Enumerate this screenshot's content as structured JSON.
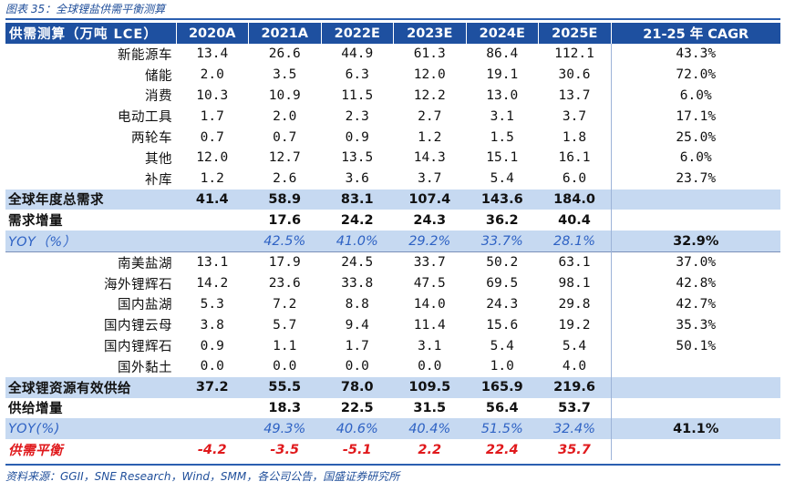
{
  "caption": "图表 35：全球锂盐供需平衡测算",
  "source": "资料来源：GGII，SNE Research，Wind，SMM，各公司公告，国盛证券研究所",
  "header": [
    "供需测算（万吨 LCE）",
    "2020A",
    "2021A",
    "2022E",
    "2023E",
    "2024E",
    "2025E",
    "21-25 年 CAGR"
  ],
  "demand_rows": [
    {
      "label": "新能源车",
      "values": [
        "13.4",
        "26.6",
        "44.9",
        "61.3",
        "86.4",
        "112.1"
      ],
      "cagr": "43.3%"
    },
    {
      "label": "储能",
      "values": [
        "2.0",
        "3.5",
        "6.3",
        "12.0",
        "19.1",
        "30.6"
      ],
      "cagr": "72.0%"
    },
    {
      "label": "消费",
      "values": [
        "10.3",
        "10.9",
        "11.5",
        "12.2",
        "13.0",
        "13.7"
      ],
      "cagr": "6.0%"
    },
    {
      "label": "电动工具",
      "values": [
        "1.7",
        "2.0",
        "2.3",
        "2.7",
        "3.1",
        "3.7"
      ],
      "cagr": "17.1%"
    },
    {
      "label": "两轮车",
      "values": [
        "0.7",
        "0.7",
        "0.9",
        "1.2",
        "1.5",
        "1.8"
      ],
      "cagr": "25.0%"
    },
    {
      "label": "其他",
      "values": [
        "12.0",
        "12.7",
        "13.5",
        "14.3",
        "15.1",
        "16.1"
      ],
      "cagr": "6.0%"
    },
    {
      "label": "补库",
      "values": [
        "1.2",
        "2.6",
        "3.6",
        "3.7",
        "5.4",
        "6.0"
      ],
      "cagr": "23.7%"
    }
  ],
  "demand_total": {
    "label": "全球年度总需求",
    "values": [
      "41.4",
      "58.9",
      "83.1",
      "107.4",
      "143.6",
      "184.0"
    ],
    "cagr": ""
  },
  "demand_increment": {
    "label": "需求增量",
    "values": [
      "",
      "17.6",
      "24.2",
      "24.3",
      "36.2",
      "40.4"
    ],
    "cagr": ""
  },
  "demand_yoy": {
    "label": "YOY（%）",
    "values": [
      "",
      "42.5%",
      "41.0%",
      "29.2%",
      "33.7%",
      "28.1%"
    ],
    "cagr": "32.9%"
  },
  "supply_rows": [
    {
      "label": "南美盐湖",
      "values": [
        "13.1",
        "17.9",
        "24.5",
        "33.7",
        "50.2",
        "63.1"
      ],
      "cagr": "37.0%"
    },
    {
      "label": "海外锂辉石",
      "values": [
        "14.2",
        "23.6",
        "33.8",
        "47.5",
        "69.5",
        "98.1"
      ],
      "cagr": "42.8%"
    },
    {
      "label": "国内盐湖",
      "values": [
        "5.3",
        "7.2",
        "8.8",
        "14.0",
        "24.3",
        "29.8"
      ],
      "cagr": "42.7%"
    },
    {
      "label": "国内锂云母",
      "values": [
        "3.8",
        "5.7",
        "9.4",
        "11.4",
        "15.6",
        "19.2"
      ],
      "cagr": "35.3%"
    },
    {
      "label": "国内锂辉石",
      "values": [
        "0.9",
        "1.1",
        "1.7",
        "3.1",
        "5.4",
        "5.4"
      ],
      "cagr": "50.1%"
    },
    {
      "label": "国外黏土",
      "values": [
        "0.0",
        "0.0",
        "0.0",
        "0.0",
        "1.0",
        "4.0"
      ],
      "cagr": ""
    }
  ],
  "supply_total": {
    "label": "全球锂资源有效供给",
    "values": [
      "37.2",
      "55.5",
      "78.0",
      "109.5",
      "165.9",
      "219.6"
    ],
    "cagr": ""
  },
  "supply_increment": {
    "label": "供给增量",
    "values": [
      "",
      "18.3",
      "22.5",
      "31.5",
      "56.4",
      "53.7"
    ],
    "cagr": ""
  },
  "supply_yoy": {
    "label": "YOY(%)",
    "values": [
      "",
      "49.3%",
      "40.6%",
      "40.4%",
      "51.5%",
      "32.4%"
    ],
    "cagr": "41.1%"
  },
  "balance": {
    "label": "供需平衡",
    "values": [
      "-4.2",
      "-3.5",
      "-5.1",
      "2.2",
      "22.4",
      "35.7"
    ],
    "cagr": ""
  }
}
